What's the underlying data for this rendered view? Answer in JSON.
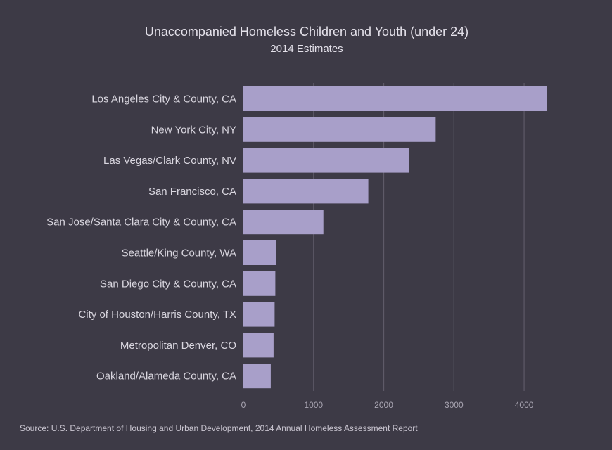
{
  "chart_data": {
    "type": "bar",
    "orientation": "horizontal",
    "title": "Unaccompanied Homeless Children and Youth (under 24)",
    "subtitle": "2014 Estimates",
    "categories": [
      "Los Angeles City & County, CA",
      "New York City, NY",
      "Las Vegas/Clark County, NV",
      "San Francisco, CA",
      "San Jose/Santa Clara City & County, CA",
      "Seattle/King County, WA",
      "San Diego City & County, CA",
      "City of Houston/Harris County, TX",
      "Metropolitan Denver, CO",
      "Oakland/Alameda County, CA"
    ],
    "values": [
      4320,
      2740,
      2360,
      1780,
      1140,
      465,
      455,
      445,
      430,
      390
    ],
    "xticks": [
      0,
      1000,
      2000,
      3000,
      4000
    ],
    "xlim": [
      0,
      4320
    ],
    "grid": "vertical",
    "bar_color": "#a89fc9",
    "source": "Source:  U.S. Department of Housing and Urban Development, 2014 Annual Homeless Assessment Report"
  }
}
